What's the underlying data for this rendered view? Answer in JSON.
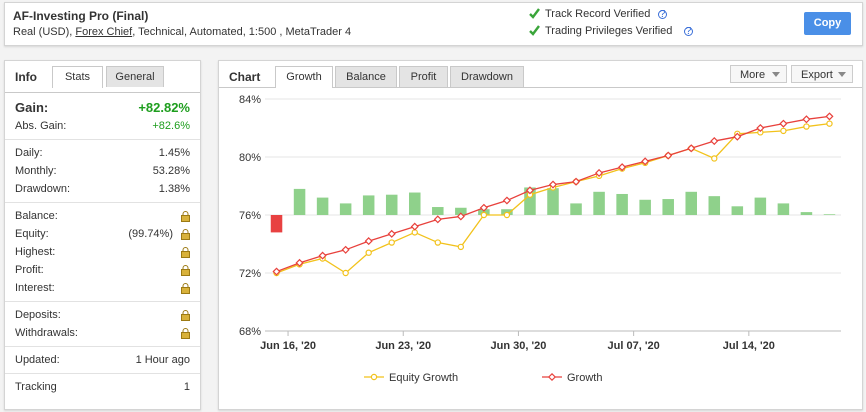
{
  "header": {
    "title": "AF-Investing Pro (Final)",
    "account": [
      "Real (USD),",
      "Forex Chief",
      ", Technical, Automated, 1:500 , MetaTrader 4"
    ],
    "verifications": [
      "Track Record Verified",
      "Trading Privileges Verified"
    ],
    "copy_button": "Copy"
  },
  "info": {
    "label": "Info",
    "tabs": [
      "Stats",
      "General"
    ],
    "active_tab": 0,
    "sections": [
      [
        {
          "label": "Gain:",
          "value": "+82.82%",
          "style": "big"
        },
        {
          "label": "Abs. Gain:",
          "value": "+82.6%",
          "style": "green"
        }
      ],
      [
        {
          "label": "Daily:",
          "value": "1.45%"
        },
        {
          "label": "Monthly:",
          "value": "53.28%"
        },
        {
          "label": "Drawdown:",
          "value": "1.38%"
        }
      ],
      [
        {
          "label": "Balance:",
          "locked": true
        },
        {
          "label": "Equity:",
          "note": "(99.74%)",
          "locked": true
        },
        {
          "label": "Highest:",
          "locked": true
        },
        {
          "label": "Profit:",
          "locked": true
        },
        {
          "label": "Interest:",
          "locked": true
        }
      ],
      [
        {
          "label": "Deposits:",
          "locked": true
        },
        {
          "label": "Withdrawals:",
          "locked": true
        }
      ],
      [
        {
          "label": "Updated:",
          "value": "1 Hour ago"
        }
      ],
      [
        {
          "label": "Tracking",
          "value": "1"
        }
      ]
    ]
  },
  "chart_panel": {
    "label": "Chart",
    "tabs": [
      "Growth",
      "Balance",
      "Profit",
      "Drawdown"
    ],
    "active_tab": 0,
    "menus": [
      "More",
      "Export"
    ]
  },
  "chart_data": {
    "type": "line",
    "x": [
      0,
      1,
      2,
      3,
      4,
      5,
      6,
      7,
      8,
      9,
      10,
      11,
      12,
      13,
      14,
      15,
      16,
      17,
      18,
      19,
      20,
      21,
      22,
      23,
      24
    ],
    "xlim": [
      -0.5,
      24.5
    ],
    "xticks": [
      {
        "value": 0.5,
        "label": "Jun 16, '20"
      },
      {
        "value": 5.5,
        "label": "Jun 23, '20"
      },
      {
        "value": 10.5,
        "label": "Jun 30, '20"
      },
      {
        "value": 15.5,
        "label": "Jul 07, '20"
      },
      {
        "value": 20.5,
        "label": "Jul 14, '20"
      }
    ],
    "ylim": [
      68,
      84
    ],
    "yticks": [
      {
        "value": 68,
        "label": "68%"
      },
      {
        "value": 72,
        "label": "72%"
      },
      {
        "value": 76,
        "label": "76%"
      },
      {
        "value": 80,
        "label": "80%"
      },
      {
        "value": 84,
        "label": "84%"
      }
    ],
    "y2lim": [
      -16,
      16
    ],
    "grid": true,
    "bars": {
      "axis": "y2",
      "color": "#8fd18b",
      "negative_color": "#e84141",
      "values": [
        -2.4,
        3.6,
        2.4,
        1.6,
        2.7,
        2.8,
        3.1,
        1.1,
        1.0,
        0.8,
        0.8,
        3.8,
        3.7,
        1.6,
        3.2,
        2.9,
        2.1,
        2.2,
        3.2,
        2.6,
        1.2,
        2.4,
        1.6,
        0.4,
        0.1
      ]
    },
    "series": [
      {
        "name": "Equity Growth",
        "color": "#f2c21b",
        "marker": "circle",
        "values": [
          72.0,
          72.6,
          73.0,
          72.0,
          73.4,
          74.1,
          74.8,
          74.1,
          73.8,
          76.0,
          76.0,
          77.4,
          77.9,
          78.3,
          78.7,
          79.2,
          79.6,
          80.1,
          80.6,
          79.9,
          81.6,
          81.7,
          81.8,
          82.1,
          82.3
        ]
      },
      {
        "name": "Growth",
        "color": "#e8413c",
        "marker": "diamond",
        "values": [
          72.1,
          72.7,
          73.2,
          73.6,
          74.2,
          74.7,
          75.2,
          75.7,
          75.9,
          76.5,
          77.0,
          77.7,
          78.1,
          78.3,
          78.9,
          79.3,
          79.7,
          80.1,
          80.6,
          81.1,
          81.4,
          82.0,
          82.3,
          82.6,
          82.8
        ]
      }
    ]
  }
}
